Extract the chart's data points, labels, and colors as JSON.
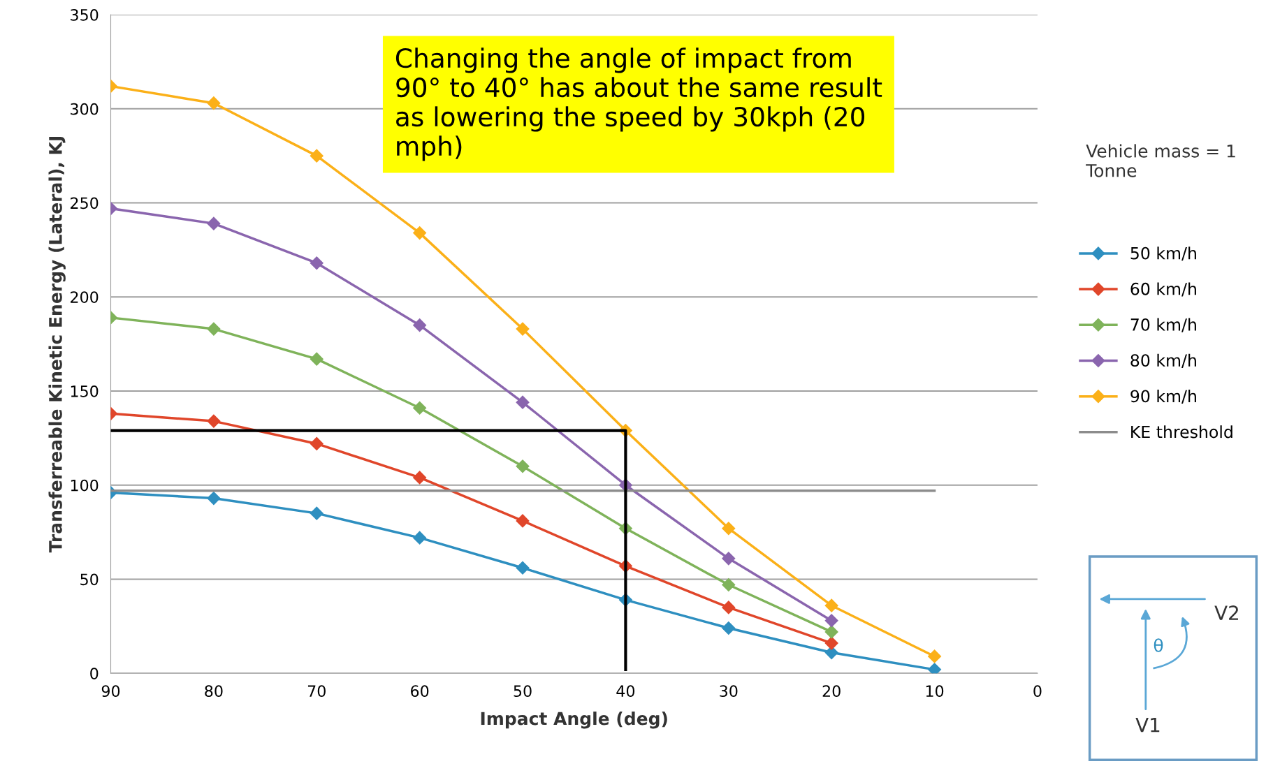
{
  "chart_data": {
    "type": "line",
    "xlabel": "Impact Angle (deg)",
    "ylabel": "Transferreable Kinetic Energy (Lateral), KJ",
    "x": [
      90,
      80,
      70,
      60,
      50,
      40,
      30,
      20,
      10
    ],
    "xlim": [
      90,
      0
    ],
    "xticks": [
      90,
      80,
      70,
      60,
      50,
      40,
      30,
      20,
      10,
      0
    ],
    "ylim": [
      0,
      350
    ],
    "yticks": [
      0,
      50,
      100,
      150,
      200,
      250,
      300,
      350
    ],
    "grid": "y",
    "legend": "right",
    "marker": "diamond",
    "line_style": "solid",
    "series": [
      {
        "name": "50 km/h",
        "color": "#2e8fc0",
        "values": [
          96,
          93,
          85,
          72,
          56,
          39,
          24,
          11,
          2
        ]
      },
      {
        "name": "60 km/h",
        "color": "#e0462a",
        "values": [
          138,
          134,
          122,
          104,
          81,
          57,
          35,
          16,
          null
        ]
      },
      {
        "name": "70 km/h",
        "color": "#7fb35a",
        "values": [
          189,
          183,
          167,
          141,
          110,
          77,
          47,
          22,
          null
        ]
      },
      {
        "name": "80 km/h",
        "color": "#8a65ae",
        "values": [
          247,
          239,
          218,
          185,
          144,
          100,
          61,
          28,
          null
        ]
      },
      {
        "name": "90 km/h",
        "color": "#fbb018",
        "values": [
          312,
          303,
          275,
          234,
          183,
          129,
          77,
          36,
          9
        ]
      },
      {
        "name": "KE threshold",
        "color": "#8c8c8c",
        "marker": "none",
        "x": [
          90,
          10
        ],
        "values": [
          97,
          97
        ]
      },
      {
        "color": "#000000",
        "marker": "none",
        "x": [
          90,
          40,
          40
        ],
        "values": [
          129,
          129,
          2
        ]
      }
    ],
    "annotations": [
      "Changing the angle of impact from 90° to 40° has about the same result as lowering the speed by 30kph (20 mph)",
      "Vehicle mass = 1 Tonne",
      "V2",
      "θ",
      "V1"
    ]
  }
}
